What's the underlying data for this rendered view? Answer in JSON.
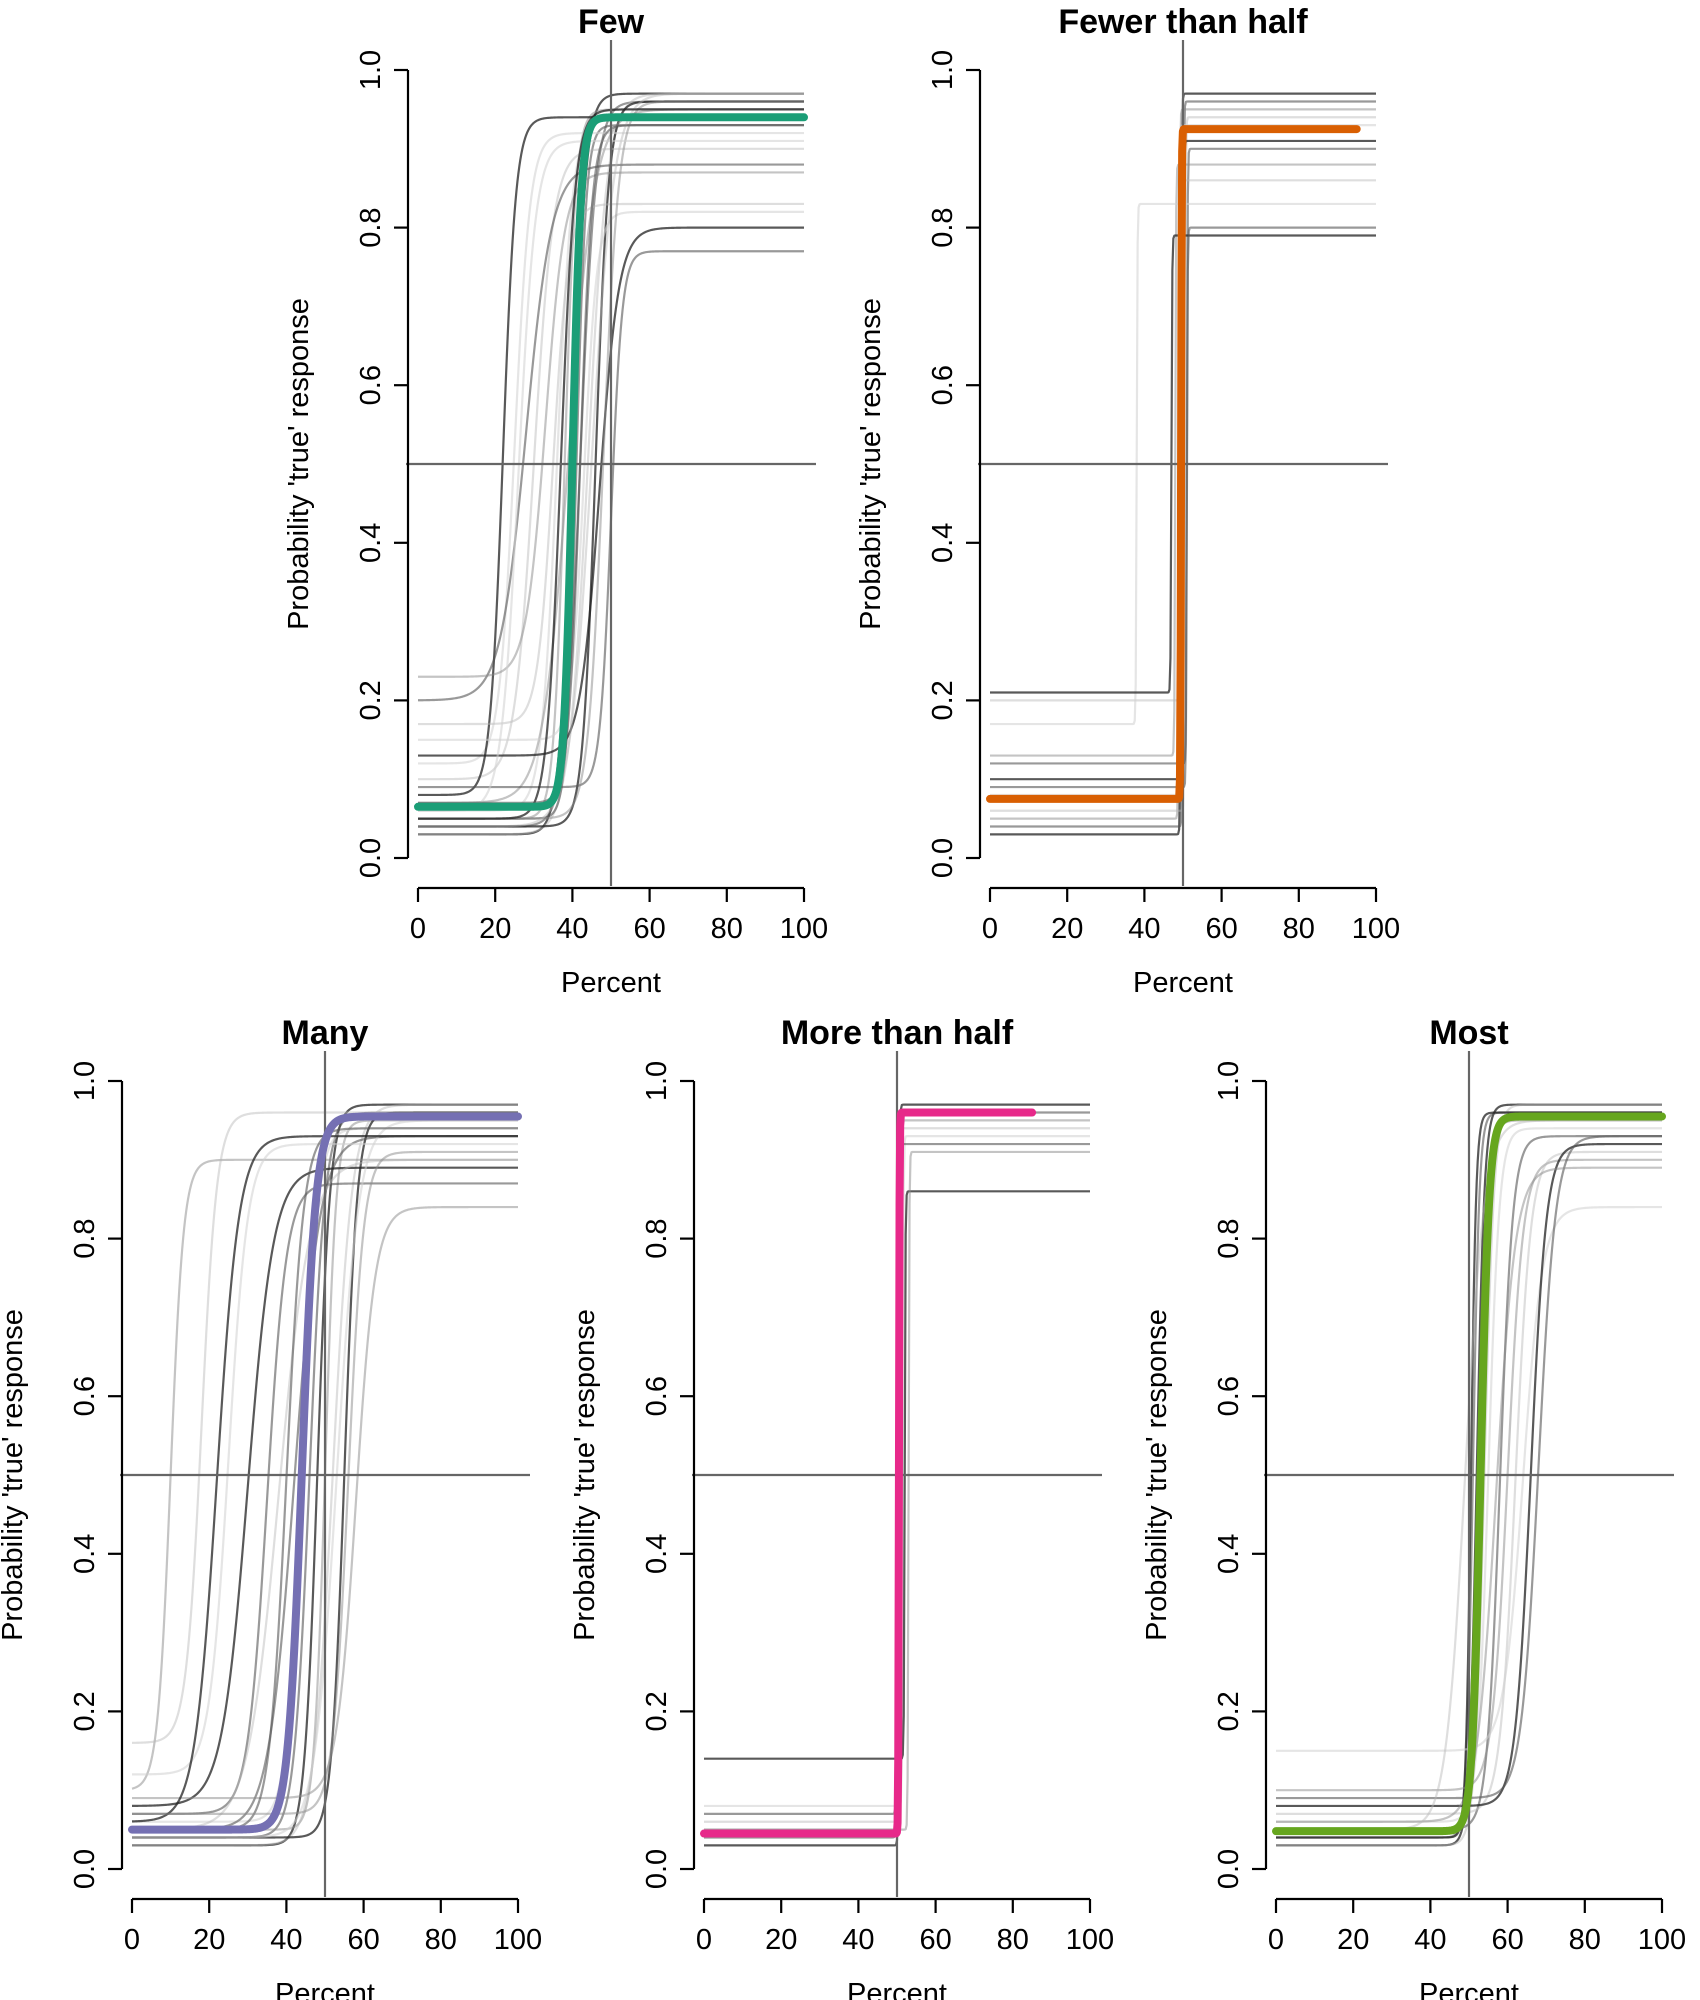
{
  "chart_data": [
    {
      "type": "line",
      "title": "Few",
      "xlabel": "Percent",
      "ylabel": "Probability 'true' response",
      "xlim": [
        0,
        100
      ],
      "ylim": [
        0,
        1
      ],
      "x_ticks": [
        "0",
        "20",
        "40",
        "60",
        "80",
        "100"
      ],
      "y_ticks": [
        "0.0",
        "0.2",
        "0.4",
        "0.6",
        "0.8",
        "1.0"
      ],
      "reference_lines": {
        "x": 50,
        "y": 0.5
      },
      "color": "#1b9e77",
      "mean_curve": {
        "lower": 0.065,
        "upper": 0.94,
        "midpoint": 40,
        "slope": 0.9,
        "x_range": [
          0,
          100
        ]
      },
      "participant_curves": [
        {
          "lower": 0.03,
          "upper": 0.97,
          "midpoint": 40,
          "slope": 0.6
        },
        {
          "lower": 0.04,
          "upper": 0.96,
          "midpoint": 42,
          "slope": 0.5
        },
        {
          "lower": 0.05,
          "upper": 0.95,
          "midpoint": 38,
          "slope": 0.7
        },
        {
          "lower": 0.03,
          "upper": 0.97,
          "midpoint": 44,
          "slope": 0.4
        },
        {
          "lower": 0.06,
          "upper": 0.94,
          "midpoint": 36,
          "slope": 0.5
        },
        {
          "lower": 0.04,
          "upper": 0.96,
          "midpoint": 46,
          "slope": 0.6
        },
        {
          "lower": 0.05,
          "upper": 0.93,
          "midpoint": 41,
          "slope": 0.8
        },
        {
          "lower": 0.07,
          "upper": 0.95,
          "midpoint": 39,
          "slope": 0.3
        },
        {
          "lower": 0.1,
          "upper": 0.9,
          "midpoint": 30,
          "slope": 0.4
        },
        {
          "lower": 0.12,
          "upper": 0.92,
          "midpoint": 25,
          "slope": 0.5
        },
        {
          "lower": 0.08,
          "upper": 0.94,
          "midpoint": 22,
          "slope": 0.6
        },
        {
          "lower": 0.2,
          "upper": 0.88,
          "midpoint": 28,
          "slope": 0.3
        },
        {
          "lower": 0.23,
          "upper": 0.87,
          "midpoint": 33,
          "slope": 0.4
        },
        {
          "lower": 0.17,
          "upper": 0.83,
          "midpoint": 35,
          "slope": 0.5
        },
        {
          "lower": 0.15,
          "upper": 0.82,
          "midpoint": 43,
          "slope": 0.6
        },
        {
          "lower": 0.13,
          "upper": 0.8,
          "midpoint": 47,
          "slope": 0.4
        },
        {
          "lower": 0.09,
          "upper": 0.77,
          "midpoint": 50,
          "slope": 0.7
        },
        {
          "lower": 0.05,
          "upper": 0.96,
          "midpoint": 48,
          "slope": 0.5
        },
        {
          "lower": 0.04,
          "upper": 0.97,
          "midpoint": 45,
          "slope": 0.35
        },
        {
          "lower": 0.06,
          "upper": 0.91,
          "midpoint": 26,
          "slope": 0.45
        },
        {
          "lower": 0.05,
          "upper": 0.95,
          "midpoint": 37,
          "slope": 0.55
        },
        {
          "lower": 0.07,
          "upper": 0.93,
          "midpoint": 42,
          "slope": 0.65
        }
      ]
    },
    {
      "type": "line",
      "title": "Fewer than half",
      "xlabel": "Percent",
      "ylabel": "Probability 'true' response",
      "xlim": [
        0,
        100
      ],
      "ylim": [
        0,
        1
      ],
      "x_ticks": [
        "0",
        "20",
        "40",
        "60",
        "80",
        "100"
      ],
      "y_ticks": [
        "0.0",
        "0.2",
        "0.4",
        "0.6",
        "0.8",
        "1.0"
      ],
      "reference_lines": {
        "x": 50,
        "y": 0.5
      },
      "color": "#d95f02",
      "mean_curve": {
        "lower": 0.075,
        "upper": 0.925,
        "midpoint": 49.5,
        "slope": 12,
        "x_range": [
          0,
          95
        ]
      },
      "participant_curves": [
        {
          "lower": 0.03,
          "upper": 0.97,
          "midpoint": 49.5,
          "slope": 10
        },
        {
          "lower": 0.04,
          "upper": 0.96,
          "midpoint": 50,
          "slope": 10
        },
        {
          "lower": 0.05,
          "upper": 0.95,
          "midpoint": 49,
          "slope": 10
        },
        {
          "lower": 0.06,
          "upper": 0.94,
          "midpoint": 50.5,
          "slope": 10
        },
        {
          "lower": 0.08,
          "upper": 0.93,
          "midpoint": 49,
          "slope": 10
        },
        {
          "lower": 0.1,
          "upper": 0.91,
          "midpoint": 50,
          "slope": 10
        },
        {
          "lower": 0.12,
          "upper": 0.9,
          "midpoint": 51,
          "slope": 10
        },
        {
          "lower": 0.13,
          "upper": 0.88,
          "midpoint": 48,
          "slope": 10
        },
        {
          "lower": 0.2,
          "upper": 0.86,
          "midpoint": 49.5,
          "slope": 10
        },
        {
          "lower": 0.17,
          "upper": 0.83,
          "midpoint": 38,
          "slope": 10
        },
        {
          "lower": 0.21,
          "upper": 0.79,
          "midpoint": 47,
          "slope": 10
        },
        {
          "lower": 0.09,
          "upper": 0.8,
          "midpoint": 51,
          "slope": 10
        }
      ]
    },
    {
      "type": "line",
      "title": "Many",
      "xlabel": "Percent",
      "ylabel": "Probability 'true' response",
      "xlim": [
        0,
        100
      ],
      "ylim": [
        0,
        1
      ],
      "x_ticks": [
        "0",
        "20",
        "40",
        "60",
        "80",
        "100"
      ],
      "y_ticks": [
        "0.0",
        "0.2",
        "0.4",
        "0.6",
        "0.8",
        "1.0"
      ],
      "reference_lines": {
        "x": 50,
        "y": 0.5
      },
      "color": "#7570b3",
      "mean_curve": {
        "lower": 0.05,
        "upper": 0.955,
        "midpoint": 44,
        "slope": 0.55,
        "x_range": [
          0,
          100
        ]
      },
      "participant_curves": [
        {
          "lower": 0.03,
          "upper": 0.97,
          "midpoint": 48,
          "slope": 0.6
        },
        {
          "lower": 0.04,
          "upper": 0.96,
          "midpoint": 46,
          "slope": 0.5
        },
        {
          "lower": 0.05,
          "upper": 0.95,
          "midpoint": 50,
          "slope": 0.7
        },
        {
          "lower": 0.03,
          "upper": 0.97,
          "midpoint": 52,
          "slope": 0.4
        },
        {
          "lower": 0.06,
          "upper": 0.94,
          "midpoint": 44,
          "slope": 0.5
        },
        {
          "lower": 0.04,
          "upper": 0.96,
          "midpoint": 55,
          "slope": 0.6
        },
        {
          "lower": 0.05,
          "upper": 0.93,
          "midpoint": 42,
          "slope": 0.3
        },
        {
          "lower": 0.1,
          "upper": 0.9,
          "midpoint": 10,
          "slope": 0.6
        },
        {
          "lower": 0.16,
          "upper": 0.96,
          "midpoint": 18,
          "slope": 0.5
        },
        {
          "lower": 0.12,
          "upper": 0.92,
          "midpoint": 25,
          "slope": 0.4
        },
        {
          "lower": 0.08,
          "upper": 0.89,
          "midpoint": 30,
          "slope": 0.3
        },
        {
          "lower": 0.07,
          "upper": 0.87,
          "midpoint": 35,
          "slope": 0.4
        },
        {
          "lower": 0.09,
          "upper": 0.84,
          "midpoint": 58,
          "slope": 0.4
        },
        {
          "lower": 0.05,
          "upper": 0.9,
          "midpoint": 38,
          "slope": 0.25
        },
        {
          "lower": 0.04,
          "upper": 0.95,
          "midpoint": 53,
          "slope": 0.35
        },
        {
          "lower": 0.06,
          "upper": 0.93,
          "midpoint": 22,
          "slope": 0.35
        },
        {
          "lower": 0.05,
          "upper": 0.94,
          "midpoint": 40,
          "slope": 0.45
        },
        {
          "lower": 0.07,
          "upper": 0.91,
          "midpoint": 56,
          "slope": 0.5
        }
      ]
    },
    {
      "type": "line",
      "title": "More than half",
      "xlabel": "Percent",
      "ylabel": "Probability 'true' response",
      "xlim": [
        0,
        100
      ],
      "ylim": [
        0,
        1
      ],
      "x_ticks": [
        "0",
        "20",
        "40",
        "60",
        "80",
        "100"
      ],
      "y_ticks": [
        "0.0",
        "0.2",
        "0.4",
        "0.6",
        "0.8",
        "1.0"
      ],
      "reference_lines": {
        "x": 50,
        "y": 0.5
      },
      "color": "#e7298a",
      "mean_curve": {
        "lower": 0.045,
        "upper": 0.96,
        "midpoint": 50.5,
        "slope": 12,
        "x_range": [
          0,
          85
        ]
      },
      "participant_curves": [
        {
          "lower": 0.03,
          "upper": 0.97,
          "midpoint": 50.5,
          "slope": 10
        },
        {
          "lower": 0.04,
          "upper": 0.96,
          "midpoint": 50,
          "slope": 10
        },
        {
          "lower": 0.05,
          "upper": 0.95,
          "midpoint": 51,
          "slope": 10
        },
        {
          "lower": 0.06,
          "upper": 0.94,
          "midpoint": 50.5,
          "slope": 10
        },
        {
          "lower": 0.08,
          "upper": 0.93,
          "midpoint": 51.5,
          "slope": 10
        },
        {
          "lower": 0.14,
          "upper": 0.86,
          "midpoint": 52,
          "slope": 10
        },
        {
          "lower": 0.07,
          "upper": 0.92,
          "midpoint": 50,
          "slope": 10
        },
        {
          "lower": 0.05,
          "upper": 0.91,
          "midpoint": 53,
          "slope": 10
        }
      ]
    },
    {
      "type": "line",
      "title": "Most",
      "xlabel": "Percent",
      "ylabel": "Probability 'true' response",
      "xlim": [
        0,
        100
      ],
      "ylim": [
        0,
        1
      ],
      "x_ticks": [
        "0",
        "20",
        "40",
        "60",
        "80",
        "100"
      ],
      "y_ticks": [
        "0.0",
        "0.2",
        "0.4",
        "0.6",
        "0.8",
        "1.0"
      ],
      "reference_lines": {
        "x": 50,
        "y": 0.5
      },
      "color": "#66a61e",
      "mean_curve": {
        "lower": 0.048,
        "upper": 0.955,
        "midpoint": 53,
        "slope": 0.9,
        "x_range": [
          0,
          100
        ]
      },
      "participant_curves": [
        {
          "lower": 0.03,
          "upper": 0.97,
          "midpoint": 52,
          "slope": 1
        },
        {
          "lower": 0.04,
          "upper": 0.96,
          "midpoint": 51,
          "slope": 1.2
        },
        {
          "lower": 0.05,
          "upper": 0.95,
          "midpoint": 53,
          "slope": 0.9
        },
        {
          "lower": 0.03,
          "upper": 0.97,
          "midpoint": 54,
          "slope": 0.8
        },
        {
          "lower": 0.06,
          "upper": 0.94,
          "midpoint": 55,
          "slope": 0.7
        },
        {
          "lower": 0.04,
          "upper": 0.96,
          "midpoint": 50.5,
          "slope": 1.5
        },
        {
          "lower": 0.05,
          "upper": 0.93,
          "midpoint": 58,
          "slope": 0.6
        },
        {
          "lower": 0.1,
          "upper": 0.9,
          "midpoint": 60,
          "slope": 0.5
        },
        {
          "lower": 0.07,
          "upper": 0.91,
          "midpoint": 62,
          "slope": 0.5
        },
        {
          "lower": 0.15,
          "upper": 0.84,
          "midpoint": 64,
          "slope": 0.4
        },
        {
          "lower": 0.08,
          "upper": 0.92,
          "midpoint": 66,
          "slope": 0.5
        },
        {
          "lower": 0.09,
          "upper": 0.93,
          "midpoint": 68,
          "slope": 0.45
        },
        {
          "lower": 0.06,
          "upper": 0.89,
          "midpoint": 57,
          "slope": 0.4
        },
        {
          "lower": 0.05,
          "upper": 0.95,
          "midpoint": 49,
          "slope": 0.4
        }
      ]
    }
  ]
}
